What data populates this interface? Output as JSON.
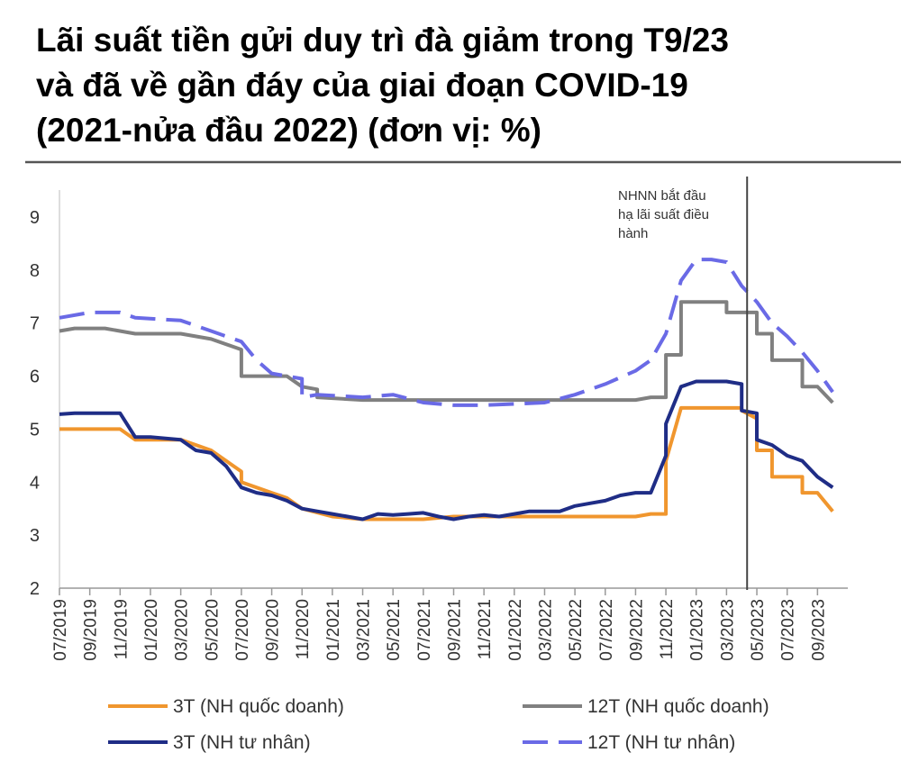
{
  "title_lines": [
    "Lãi suất tiền gửi duy trì đà giảm trong T9/23",
    "và đã về gần đáy của giai đoạn COVID-19",
    "(2021-nửa đầu 2022) (đơn vị: %)"
  ],
  "chart_data": {
    "type": "line",
    "title": "Lãi suất tiền gửi duy trì đà giảm trong T9/23 và đã về gần đáy của giai đoạn COVID-19 (2021-nửa đầu 2022) (đơn vị: %)",
    "xlabel": "",
    "ylabel": "",
    "ylim": [
      2,
      9
    ],
    "yticks": [
      2,
      3,
      4,
      5,
      6,
      7,
      8,
      9
    ],
    "xticks": [
      "07/2019",
      "09/2019",
      "11/2019",
      "01/2020",
      "03/2020",
      "05/2020",
      "07/2020",
      "09/2020",
      "11/2020",
      "01/2021",
      "03/2021",
      "05/2021",
      "07/2021",
      "09/2021",
      "11/2021",
      "01/2022",
      "03/2022",
      "05/2022",
      "07/2022",
      "09/2022",
      "11/2022",
      "01/2023",
      "03/2023",
      "05/2023",
      "07/2023",
      "09/2023"
    ],
    "grid": false,
    "legend_position": "bottom",
    "annotation": {
      "x": "04/2023",
      "lines": [
        "NHNN bắt đầu",
        "hạ lãi suất điều",
        "hành"
      ]
    },
    "series": [
      {
        "name": "3T (NH quốc doanh)",
        "color": "#F0962E",
        "style": "solid",
        "points": [
          [
            "07/2019",
            5.0
          ],
          [
            "11/2019",
            5.0
          ],
          [
            "12/2019",
            4.8
          ],
          [
            "03/2020",
            4.8
          ],
          [
            "05/2020",
            4.6
          ],
          [
            "07/2020",
            4.2
          ],
          [
            "07/2020",
            4.0
          ],
          [
            "09/2020",
            3.8
          ],
          [
            "10/2020",
            3.7
          ],
          [
            "11/2020",
            3.5
          ],
          [
            "01/2021",
            3.35
          ],
          [
            "03/2021",
            3.3
          ],
          [
            "07/2021",
            3.3
          ],
          [
            "09/2021",
            3.35
          ],
          [
            "09/2022",
            3.35
          ],
          [
            "10/2022",
            3.4
          ],
          [
            "11/2022",
            3.4
          ],
          [
            "11/2022",
            4.4
          ],
          [
            "12/2022",
            5.4
          ],
          [
            "03/2023",
            5.4
          ],
          [
            "04/2023",
            5.4
          ],
          [
            "04/2023",
            5.35
          ],
          [
            "05/2023",
            5.2
          ],
          [
            "05/2023",
            4.6
          ],
          [
            "06/2023",
            4.6
          ],
          [
            "06/2023",
            4.1
          ],
          [
            "08/2023",
            4.1
          ],
          [
            "08/2023",
            3.8
          ],
          [
            "09/2023",
            3.8
          ],
          [
            "10/2023",
            3.45
          ]
        ]
      },
      {
        "name": "12T (NH quốc doanh)",
        "color": "#808080",
        "style": "solid",
        "points": [
          [
            "07/2019",
            6.85
          ],
          [
            "08/2019",
            6.9
          ],
          [
            "10/2019",
            6.9
          ],
          [
            "12/2019",
            6.8
          ],
          [
            "03/2020",
            6.8
          ],
          [
            "05/2020",
            6.7
          ],
          [
            "07/2020",
            6.5
          ],
          [
            "07/2020",
            6.0
          ],
          [
            "10/2020",
            6.0
          ],
          [
            "11/2020",
            5.8
          ],
          [
            "12/2020",
            5.75
          ],
          [
            "12/2020",
            5.6
          ],
          [
            "03/2021",
            5.55
          ],
          [
            "09/2022",
            5.55
          ],
          [
            "10/2022",
            5.6
          ],
          [
            "11/2022",
            5.6
          ],
          [
            "11/2022",
            6.4
          ],
          [
            "12/2022",
            6.4
          ],
          [
            "12/2022",
            7.4
          ],
          [
            "03/2023",
            7.4
          ],
          [
            "03/2023",
            7.2
          ],
          [
            "05/2023",
            7.2
          ],
          [
            "05/2023",
            6.8
          ],
          [
            "06/2023",
            6.8
          ],
          [
            "06/2023",
            6.3
          ],
          [
            "08/2023",
            6.3
          ],
          [
            "08/2023",
            5.8
          ],
          [
            "09/2023",
            5.8
          ],
          [
            "10/2023",
            5.5
          ]
        ]
      },
      {
        "name": "3T (NH tư nhân)",
        "color": "#1F2D86",
        "style": "solid",
        "points": [
          [
            "07/2019",
            5.28
          ],
          [
            "08/2019",
            5.3
          ],
          [
            "11/2019",
            5.3
          ],
          [
            "12/2019",
            4.85
          ],
          [
            "01/2020",
            4.85
          ],
          [
            "03/2020",
            4.8
          ],
          [
            "04/2020",
            4.6
          ],
          [
            "05/2020",
            4.55
          ],
          [
            "06/2020",
            4.3
          ],
          [
            "07/2020",
            3.9
          ],
          [
            "08/2020",
            3.8
          ],
          [
            "09/2020",
            3.75
          ],
          [
            "10/2020",
            3.65
          ],
          [
            "11/2020",
            3.5
          ],
          [
            "12/2020",
            3.45
          ],
          [
            "01/2021",
            3.4
          ],
          [
            "02/2021",
            3.35
          ],
          [
            "03/2021",
            3.3
          ],
          [
            "04/2021",
            3.4
          ],
          [
            "05/2021",
            3.38
          ],
          [
            "06/2021",
            3.4
          ],
          [
            "07/2021",
            3.42
          ],
          [
            "08/2021",
            3.35
          ],
          [
            "09/2021",
            3.3
          ],
          [
            "10/2021",
            3.35
          ],
          [
            "11/2021",
            3.38
          ],
          [
            "12/2021",
            3.35
          ],
          [
            "01/2022",
            3.4
          ],
          [
            "02/2022",
            3.45
          ],
          [
            "03/2022",
            3.45
          ],
          [
            "04/2022",
            3.45
          ],
          [
            "05/2022",
            3.55
          ],
          [
            "06/2022",
            3.6
          ],
          [
            "07/2022",
            3.65
          ],
          [
            "08/2022",
            3.75
          ],
          [
            "09/2022",
            3.8
          ],
          [
            "10/2022",
            3.8
          ],
          [
            "11/2022",
            4.5
          ],
          [
            "11/2022",
            5.1
          ],
          [
            "12/2022",
            5.8
          ],
          [
            "01/2023",
            5.9
          ],
          [
            "02/2023",
            5.9
          ],
          [
            "03/2023",
            5.9
          ],
          [
            "04/2023",
            5.85
          ],
          [
            "04/2023",
            5.35
          ],
          [
            "05/2023",
            5.3
          ],
          [
            "05/2023",
            4.8
          ],
          [
            "06/2023",
            4.7
          ],
          [
            "07/2023",
            4.5
          ],
          [
            "08/2023",
            4.4
          ],
          [
            "09/2023",
            4.1
          ],
          [
            "10/2023",
            3.9
          ]
        ]
      },
      {
        "name": "12T (NH tư nhân)",
        "color": "#6A6AE6",
        "style": "dashed",
        "points": [
          [
            "07/2019",
            7.1
          ],
          [
            "09/2019",
            7.2
          ],
          [
            "11/2019",
            7.2
          ],
          [
            "12/2019",
            7.1
          ],
          [
            "03/2020",
            7.05
          ],
          [
            "05/2020",
            6.85
          ],
          [
            "07/2020",
            6.65
          ],
          [
            "08/2020",
            6.3
          ],
          [
            "09/2020",
            6.05
          ],
          [
            "11/2020",
            5.95
          ],
          [
            "11/2020",
            5.6
          ],
          [
            "12/2020",
            5.65
          ],
          [
            "03/2021",
            5.6
          ],
          [
            "05/2021",
            5.65
          ],
          [
            "07/2021",
            5.5
          ],
          [
            "09/2021",
            5.45
          ],
          [
            "11/2021",
            5.45
          ],
          [
            "03/2022",
            5.5
          ],
          [
            "05/2022",
            5.65
          ],
          [
            "07/2022",
            5.85
          ],
          [
            "09/2022",
            6.1
          ],
          [
            "10/2022",
            6.3
          ],
          [
            "11/2022",
            6.8
          ],
          [
            "12/2022",
            7.8
          ],
          [
            "01/2023",
            8.2
          ],
          [
            "02/2023",
            8.2
          ],
          [
            "03/2023",
            8.15
          ],
          [
            "04/2023",
            7.7
          ],
          [
            "05/2023",
            7.4
          ],
          [
            "06/2023",
            7.0
          ],
          [
            "07/2023",
            6.75
          ],
          [
            "08/2023",
            6.45
          ],
          [
            "09/2023",
            6.1
          ],
          [
            "10/2023",
            5.7
          ]
        ]
      }
    ]
  }
}
